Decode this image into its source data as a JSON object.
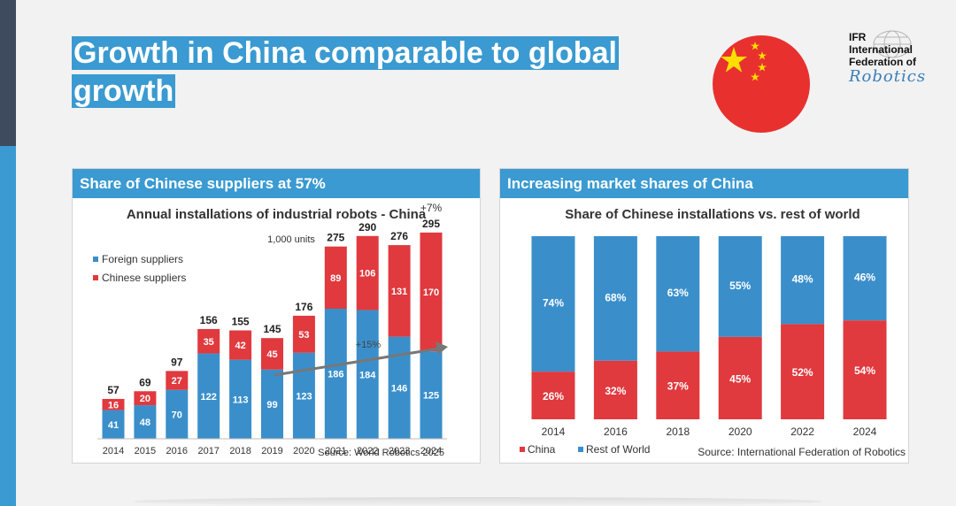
{
  "slide": {
    "title_line1": "Growth in China comparable to global",
    "title_line2": "growth"
  },
  "logo": {
    "line1": "IFR",
    "line2": "International",
    "line3": "Federation of",
    "line4": "Robotics"
  },
  "colors": {
    "accent_blue": "#3a9ad1",
    "china_red": "#e0393e",
    "foreign_blue": "#3a8fcb",
    "dark_navy": "#3e4a5e"
  },
  "left_panel": {
    "header": "Share of Chinese suppliers at 57%",
    "title": "Annual installations of industrial robots - China",
    "unit_note": "1,000 units",
    "growth_label_top": "+7%",
    "growth_label_arrow": "+15%",
    "source": "Source: World Robotics 2025"
  },
  "right_panel": {
    "header": "Increasing market shares of China",
    "title": "Share of Chinese installations vs. rest of world",
    "source": "Source: International Federation of Robotics"
  },
  "chart_data": [
    {
      "type": "bar",
      "stacked": true,
      "title": "Annual installations of industrial robots - China",
      "subtitle": "1,000 units",
      "categories": [
        "2014",
        "2015",
        "2016",
        "2017",
        "2018",
        "2019",
        "2020",
        "2021",
        "2022",
        "2023",
        "2024"
      ],
      "series": [
        {
          "name": "Foreign suppliers",
          "color": "#3a8fcb",
          "values": [
            41,
            48,
            70,
            122,
            113,
            99,
            123,
            186,
            184,
            146,
            125
          ]
        },
        {
          "name": "Chinese suppliers",
          "color": "#e0393e",
          "values": [
            16,
            20,
            27,
            35,
            42,
            45,
            53,
            89,
            106,
            131,
            170
          ]
        }
      ],
      "totals": [
        57,
        69,
        97,
        156,
        155,
        145,
        176,
        275,
        290,
        276,
        295
      ],
      "ylim": [
        0,
        310
      ],
      "legend_position": "top-left",
      "annotations": [
        "+7%",
        "+15%"
      ],
      "source": "Source: World Robotics 2025"
    },
    {
      "type": "bar",
      "stacked": true,
      "title": "Share of Chinese installations vs. rest of world",
      "categories": [
        "2014",
        "2016",
        "2018",
        "2020",
        "2022",
        "2024"
      ],
      "series": [
        {
          "name": "China",
          "color": "#e0393e",
          "values": [
            26,
            32,
            37,
            45,
            52,
            54
          ]
        },
        {
          "name": "Rest of World",
          "color": "#3a8fcb",
          "values": [
            74,
            68,
            63,
            55,
            48,
            46
          ]
        }
      ],
      "value_suffix": "%",
      "ylim": [
        0,
        100
      ],
      "legend_position": "bottom-left",
      "source": "Source: International Federation of Robotics"
    }
  ]
}
